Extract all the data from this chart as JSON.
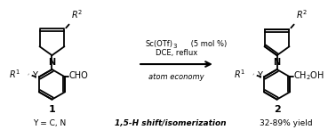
{
  "bg_color": "#ffffff",
  "line_color": "#000000",
  "figsize": [
    3.78,
    1.55
  ],
  "dpi": 100,
  "label_Y": "Y = C, N",
  "label_mechanism": "1,5-H shift/isomerization",
  "label_yield": "32-89% yield",
  "label_1": "1",
  "label_2": "2",
  "reagent1": "Sc(OTf)",
  "reagent1_sub": "3",
  "reagent1_rest": " (5 mol %)",
  "reagent2": "DCE, reflux",
  "reagent3": "atom economy"
}
